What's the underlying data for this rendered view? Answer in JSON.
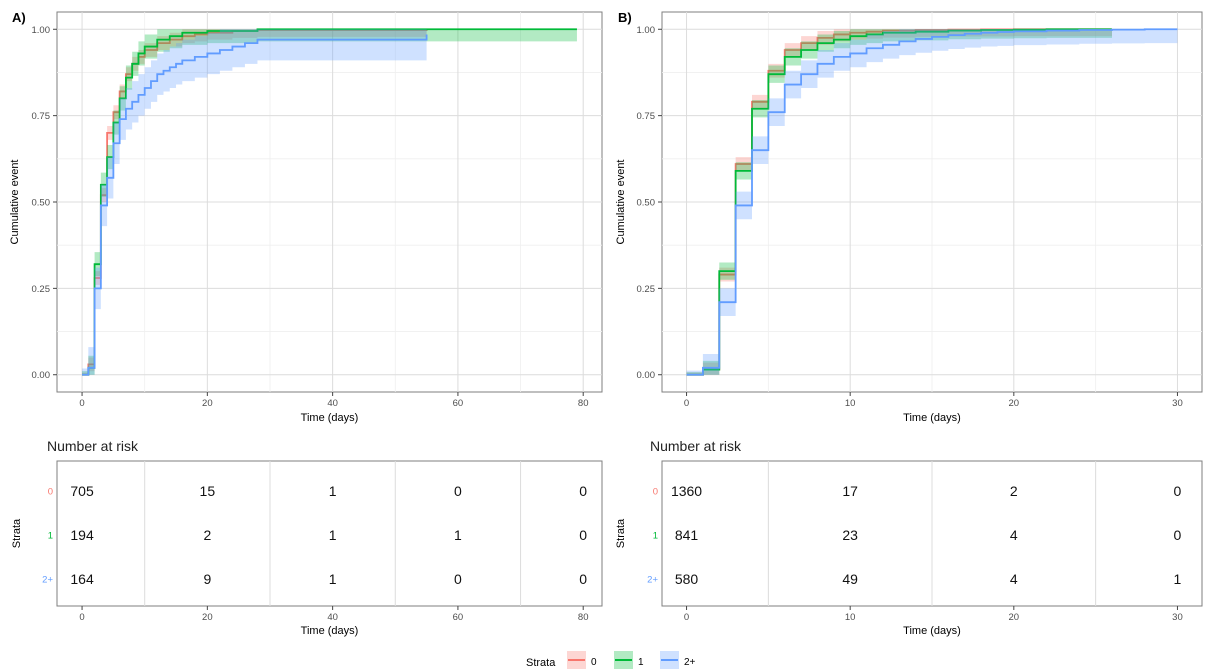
{
  "colors": {
    "s0": "#f8766d",
    "s1": "#00ba38",
    "s2": "#619cff"
  },
  "legend": {
    "title": "Strata",
    "labels": [
      "0",
      "1",
      "2+"
    ]
  },
  "chart_data": [
    {
      "panel": "A)",
      "type": "line",
      "step": true,
      "confidence_bands": true,
      "xlabel": "Time (days)",
      "ylabel": "Cumulative event",
      "xlim": [
        -4,
        83
      ],
      "ylim": [
        -0.05,
        1.05
      ],
      "xticks": [
        0,
        20,
        40,
        60,
        80
      ],
      "yticks": [
        0.0,
        0.25,
        0.5,
        0.75,
        1.0
      ],
      "ytick_labels": [
        "0.00",
        "0.25",
        "0.50",
        "0.75",
        "1.00"
      ],
      "grid": true,
      "series": [
        {
          "name": "0",
          "color_key": "s0",
          "x": [
            0,
            1,
            2,
            3,
            4,
            5,
            6,
            7,
            8,
            9,
            10,
            12,
            14,
            16,
            18,
            20,
            24,
            28,
            55
          ],
          "y": [
            0,
            0.03,
            0.28,
            0.52,
            0.7,
            0.76,
            0.82,
            0.87,
            0.9,
            0.92,
            0.94,
            0.96,
            0.97,
            0.98,
            0.985,
            0.99,
            0.995,
            0.998,
            1.0
          ],
          "band": 0.02,
          "end": 55
        },
        {
          "name": "1",
          "color_key": "s1",
          "x": [
            0,
            1,
            2,
            3,
            4,
            5,
            6,
            7,
            8,
            9,
            10,
            12,
            14,
            16,
            20,
            28,
            79
          ],
          "y": [
            0,
            0.02,
            0.32,
            0.55,
            0.63,
            0.73,
            0.8,
            0.86,
            0.9,
            0.93,
            0.95,
            0.97,
            0.98,
            0.99,
            0.995,
            1.0,
            1.0
          ],
          "band": 0.035,
          "end": 79
        },
        {
          "name": "2+",
          "color_key": "s2",
          "x": [
            0,
            1,
            2,
            3,
            4,
            5,
            6,
            7,
            8,
            9,
            10,
            11,
            12,
            13,
            14,
            15,
            16,
            18,
            20,
            22,
            24,
            26,
            28,
            55
          ],
          "y": [
            0,
            0.02,
            0.25,
            0.49,
            0.57,
            0.67,
            0.74,
            0.77,
            0.79,
            0.81,
            0.83,
            0.85,
            0.87,
            0.88,
            0.89,
            0.9,
            0.91,
            0.92,
            0.93,
            0.94,
            0.95,
            0.96,
            0.97,
            0.985
          ],
          "band": 0.06,
          "end": 55
        }
      ],
      "risk_table": {
        "title": "Number at risk",
        "ylabel": "Strata",
        "xlabel": "Time (days)",
        "times": [
          0,
          20,
          40,
          60,
          80
        ],
        "strata": [
          "0",
          "1",
          "2+"
        ],
        "rows": [
          [
            "705",
            "15",
            "1",
            "0",
            "0"
          ],
          [
            "194",
            "2",
            "1",
            "1",
            "0"
          ],
          [
            "164",
            "9",
            "1",
            "0",
            "0"
          ]
        ]
      }
    },
    {
      "panel": "B)",
      "type": "line",
      "step": true,
      "confidence_bands": true,
      "xlabel": "Time (days)",
      "ylabel": "Cumulative event",
      "xlim": [
        -1.5,
        31.5
      ],
      "ylim": [
        -0.05,
        1.05
      ],
      "xticks": [
        0,
        10,
        20,
        30
      ],
      "yticks": [
        0.0,
        0.25,
        0.5,
        0.75,
        1.0
      ],
      "ytick_labels": [
        "0.00",
        "0.25",
        "0.50",
        "0.75",
        "1.00"
      ],
      "grid": true,
      "series": [
        {
          "name": "0",
          "color_key": "s0",
          "x": [
            0,
            1,
            2,
            3,
            4,
            5,
            6,
            7,
            8,
            9,
            10,
            11,
            12,
            14,
            16,
            18,
            20,
            22,
            24
          ],
          "y": [
            0,
            0.015,
            0.29,
            0.61,
            0.79,
            0.88,
            0.94,
            0.96,
            0.975,
            0.985,
            0.99,
            0.993,
            0.996,
            0.998,
            0.999,
            0.9995,
            1.0,
            1.0,
            1.0
          ],
          "band": 0.02,
          "end": 26
        },
        {
          "name": "1",
          "color_key": "s1",
          "x": [
            0,
            1,
            2,
            3,
            4,
            5,
            6,
            7,
            8,
            9,
            10,
            11,
            12,
            14,
            16,
            18,
            20,
            22,
            24
          ],
          "y": [
            0,
            0.015,
            0.3,
            0.59,
            0.77,
            0.87,
            0.92,
            0.94,
            0.96,
            0.97,
            0.98,
            0.985,
            0.99,
            0.993,
            0.996,
            0.998,
            0.999,
            1.0,
            1.0
          ],
          "band": 0.025,
          "end": 26
        },
        {
          "name": "2+",
          "color_key": "s2",
          "x": [
            0,
            1,
            2,
            3,
            4,
            5,
            6,
            7,
            8,
            9,
            10,
            11,
            12,
            13,
            14,
            15,
            16,
            17,
            18,
            19,
            20,
            22,
            24,
            26,
            28,
            29
          ],
          "y": [
            0,
            0.02,
            0.21,
            0.49,
            0.65,
            0.76,
            0.84,
            0.87,
            0.9,
            0.92,
            0.93,
            0.945,
            0.955,
            0.965,
            0.972,
            0.978,
            0.983,
            0.987,
            0.99,
            0.992,
            0.994,
            0.996,
            0.998,
            0.999,
            1.0,
            1.0
          ],
          "band": 0.04,
          "end": 30
        }
      ],
      "risk_table": {
        "title": "Number at risk",
        "ylabel": "Strata",
        "xlabel": "Time (days)",
        "times": [
          0,
          10,
          20,
          30
        ],
        "strata": [
          "0",
          "1",
          "2+"
        ],
        "rows": [
          [
            "1360",
            "17",
            "2",
            "0"
          ],
          [
            "841",
            "23",
            "4",
            "0"
          ],
          [
            "580",
            "49",
            "4",
            "1"
          ]
        ]
      }
    }
  ]
}
